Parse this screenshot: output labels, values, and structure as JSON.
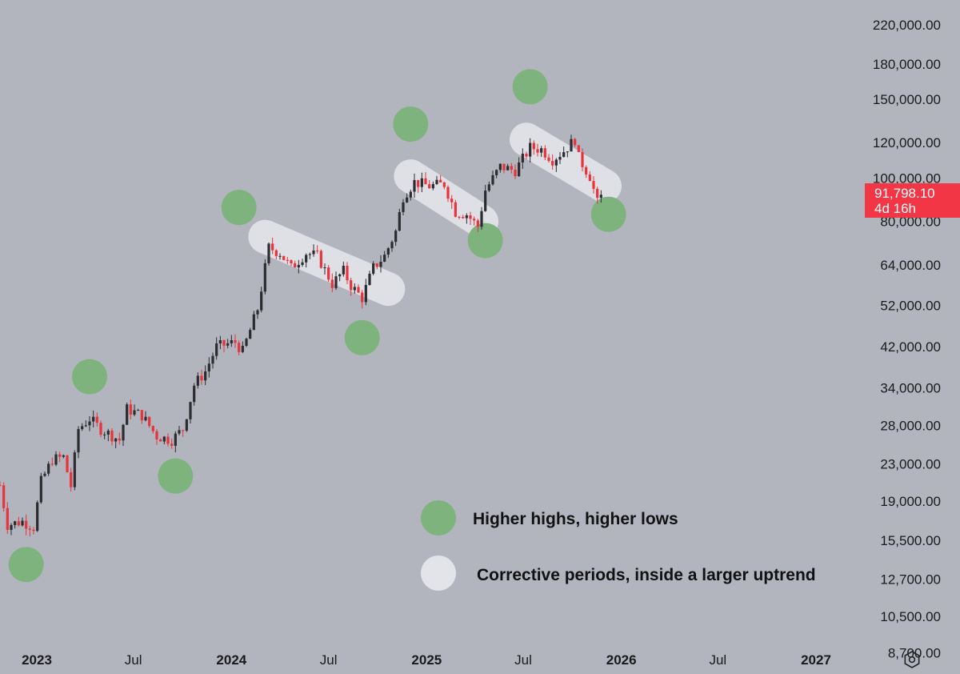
{
  "chart_data": {
    "type": "candlestick",
    "y_scale": "log",
    "ylim": [
      7800,
      250000
    ],
    "x_range": [
      "2022-10-24",
      "2027-04-01"
    ],
    "y_ticks": [
      "220,000.00",
      "180,000.00",
      "150,000.00",
      "120,000.00",
      "100,000.00",
      "80,000.00",
      "64,000.00",
      "52,000.00",
      "42,000.00",
      "34,000.00",
      "28,000.00",
      "23,000.00",
      "19,000.00",
      "15,500.00",
      "12,700.00",
      "10,500.00",
      "8,700.00"
    ],
    "y_tick_values": [
      220000,
      180000,
      150000,
      120000,
      100000,
      80000,
      64000,
      52000,
      42000,
      34000,
      28000,
      23000,
      19000,
      15500,
      12700,
      10500,
      8700
    ],
    "x_ticks": [
      {
        "label": "2023",
        "date": "2023-01-01",
        "bold": true
      },
      {
        "label": "Jul",
        "date": "2023-07-01",
        "bold": false
      },
      {
        "label": "2024",
        "date": "2024-01-01",
        "bold": true
      },
      {
        "label": "Jul",
        "date": "2024-07-01",
        "bold": false
      },
      {
        "label": "2025",
        "date": "2025-01-01",
        "bold": true
      },
      {
        "label": "Jul",
        "date": "2025-07-01",
        "bold": false
      },
      {
        "label": "2026",
        "date": "2026-01-01",
        "bold": true
      },
      {
        "label": "Jul",
        "date": "2026-07-01",
        "bold": false
      },
      {
        "label": "2027",
        "date": "2027-01-01",
        "bold": true
      }
    ],
    "price_path": [
      [
        "2022-10-24",
        20600
      ],
      [
        "2022-11-07",
        16800
      ],
      [
        "2022-12-05",
        17100
      ],
      [
        "2022-12-26",
        16600
      ],
      [
        "2023-01-09",
        21000
      ],
      [
        "2023-01-30",
        23500
      ],
      [
        "2023-02-20",
        23800
      ],
      [
        "2023-03-06",
        20500
      ],
      [
        "2023-03-20",
        27500
      ],
      [
        "2023-04-10",
        29000
      ],
      [
        "2023-05-01",
        27500
      ],
      [
        "2023-06-05",
        26000
      ],
      [
        "2023-06-19",
        30500
      ],
      [
        "2023-07-17",
        29500
      ],
      [
        "2023-08-14",
        26500
      ],
      [
        "2023-09-11",
        26000
      ],
      [
        "2023-10-02",
        27500
      ],
      [
        "2023-10-23",
        34500
      ],
      [
        "2023-11-13",
        37000
      ],
      [
        "2023-12-04",
        42000
      ],
      [
        "2024-01-08",
        43000
      ],
      [
        "2024-01-22",
        41000
      ],
      [
        "2024-02-19",
        51000
      ],
      [
        "2024-03-11",
        70000
      ],
      [
        "2024-04-01",
        68000
      ],
      [
        "2024-04-22",
        63000
      ],
      [
        "2024-05-20",
        68000
      ],
      [
        "2024-06-10",
        67000
      ],
      [
        "2024-07-08",
        58000
      ],
      [
        "2024-07-29",
        62000
      ],
      [
        "2024-08-12",
        57500
      ],
      [
        "2024-09-02",
        54000
      ],
      [
        "2024-09-23",
        63000
      ],
      [
        "2024-10-14",
        67000
      ],
      [
        "2024-11-04",
        76000
      ],
      [
        "2024-11-18",
        91000
      ],
      [
        "2024-12-09",
        98000
      ],
      [
        "2025-01-06",
        96000
      ],
      [
        "2025-02-03",
        97000
      ],
      [
        "2025-02-24",
        84000
      ],
      [
        "2025-03-17",
        83000
      ],
      [
        "2025-04-07",
        78000
      ],
      [
        "2025-04-21",
        94000
      ],
      [
        "2025-05-19",
        106000
      ],
      [
        "2025-06-16",
        104000
      ],
      [
        "2025-07-14",
        117000
      ],
      [
        "2025-08-04",
        116000
      ],
      [
        "2025-08-25",
        110000
      ],
      [
        "2025-09-15",
        115000
      ],
      [
        "2025-10-06",
        122000
      ],
      [
        "2025-10-13",
        111000
      ],
      [
        "2025-11-03",
        101000
      ],
      [
        "2025-11-17",
        88000
      ],
      [
        "2025-11-24",
        91798.1
      ]
    ],
    "highs_markers": [
      {
        "date": "2023-04-10",
        "value": 36000
      },
      {
        "date": "2024-01-15",
        "value": 86000
      },
      {
        "date": "2024-12-02",
        "value": 132000
      },
      {
        "date": "2025-07-14",
        "value": 160000
      }
    ],
    "lows_markers": [
      {
        "date": "2022-12-12",
        "value": 13700
      },
      {
        "date": "2023-09-18",
        "value": 21600
      },
      {
        "date": "2024-09-02",
        "value": 44000
      },
      {
        "date": "2025-04-21",
        "value": 72500
      },
      {
        "date": "2025-12-08",
        "value": 83000
      }
    ],
    "corrective_periods": [
      {
        "start": [
          "2024-03-04",
          74000
        ],
        "end": [
          "2024-10-21",
          56500
        ]
      },
      {
        "start": [
          "2024-12-02",
          101000
        ],
        "end": [
          "2025-04-14",
          80000
        ]
      },
      {
        "start": [
          "2025-07-07",
          122000
        ],
        "end": [
          "2025-12-01",
          96000
        ]
      }
    ],
    "current_price": {
      "value": 91798.1,
      "label": "91,798.10",
      "countdown": "4d 16h"
    },
    "legend": [
      {
        "marker": "green",
        "label": "Higher highs, higher lows"
      },
      {
        "marker": "white",
        "label": "Corrective periods, inside a larger uptrend"
      }
    ],
    "colors": {
      "background": "#b2b5be",
      "up_candle": "#2b2b30",
      "down_candle": "#e8333b",
      "green_marker": "#7eb37e",
      "white_marker": "#e2e4e9",
      "price_label_bg": "#f23645"
    }
  },
  "toolbar": {
    "settings_icon": "settings-hexagon-icon"
  }
}
